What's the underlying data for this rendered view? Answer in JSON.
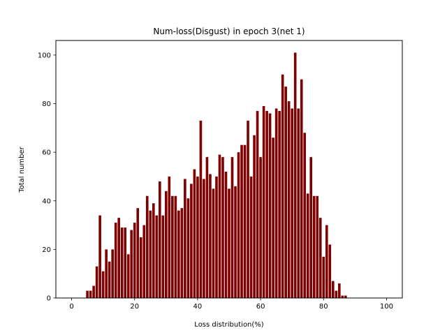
{
  "chart_data": {
    "type": "bar",
    "title": "Num-loss(Disgust) in epoch 3(net 1)",
    "xlabel": "Loss distribution(%)",
    "ylabel": "Total number",
    "xlim": [
      -5,
      105
    ],
    "ylim": [
      0,
      106
    ],
    "xticks": [
      0,
      20,
      40,
      60,
      80,
      100
    ],
    "yticks": [
      0,
      20,
      40,
      60,
      80,
      100
    ],
    "grid": false,
    "bar_color": "#7f0000",
    "x": [
      5,
      6,
      7,
      8,
      9,
      10,
      11,
      12,
      13,
      14,
      15,
      16,
      17,
      18,
      19,
      20,
      21,
      22,
      23,
      24,
      25,
      26,
      27,
      28,
      29,
      30,
      31,
      32,
      33,
      34,
      35,
      36,
      37,
      38,
      39,
      40,
      41,
      42,
      43,
      44,
      45,
      46,
      47,
      48,
      49,
      50,
      51,
      52,
      53,
      54,
      55,
      56,
      57,
      58,
      59,
      60,
      61,
      62,
      63,
      64,
      65,
      66,
      67,
      68,
      69,
      70,
      71,
      72,
      73,
      74,
      75,
      76,
      77,
      78,
      79,
      80,
      81,
      82,
      83,
      84,
      85,
      86,
      87
    ],
    "values": [
      3,
      3,
      5,
      13,
      34,
      11,
      20,
      15,
      20,
      31,
      33,
      29,
      29,
      18,
      28,
      31,
      37,
      25,
      30,
      42,
      36,
      39,
      34,
      48,
      34,
      44,
      50,
      42,
      42,
      36,
      37,
      49,
      41,
      47,
      53,
      50,
      73,
      49,
      58,
      51,
      45,
      50,
      59,
      58,
      52,
      45,
      58,
      46,
      60,
      63,
      63,
      73,
      50,
      67,
      77,
      58,
      79,
      77,
      76,
      66,
      78,
      77,
      92,
      87,
      81,
      78,
      101,
      78,
      90,
      68,
      43,
      58,
      42,
      42,
      33,
      17,
      30,
      22,
      7,
      3,
      6,
      1,
      1
    ]
  }
}
